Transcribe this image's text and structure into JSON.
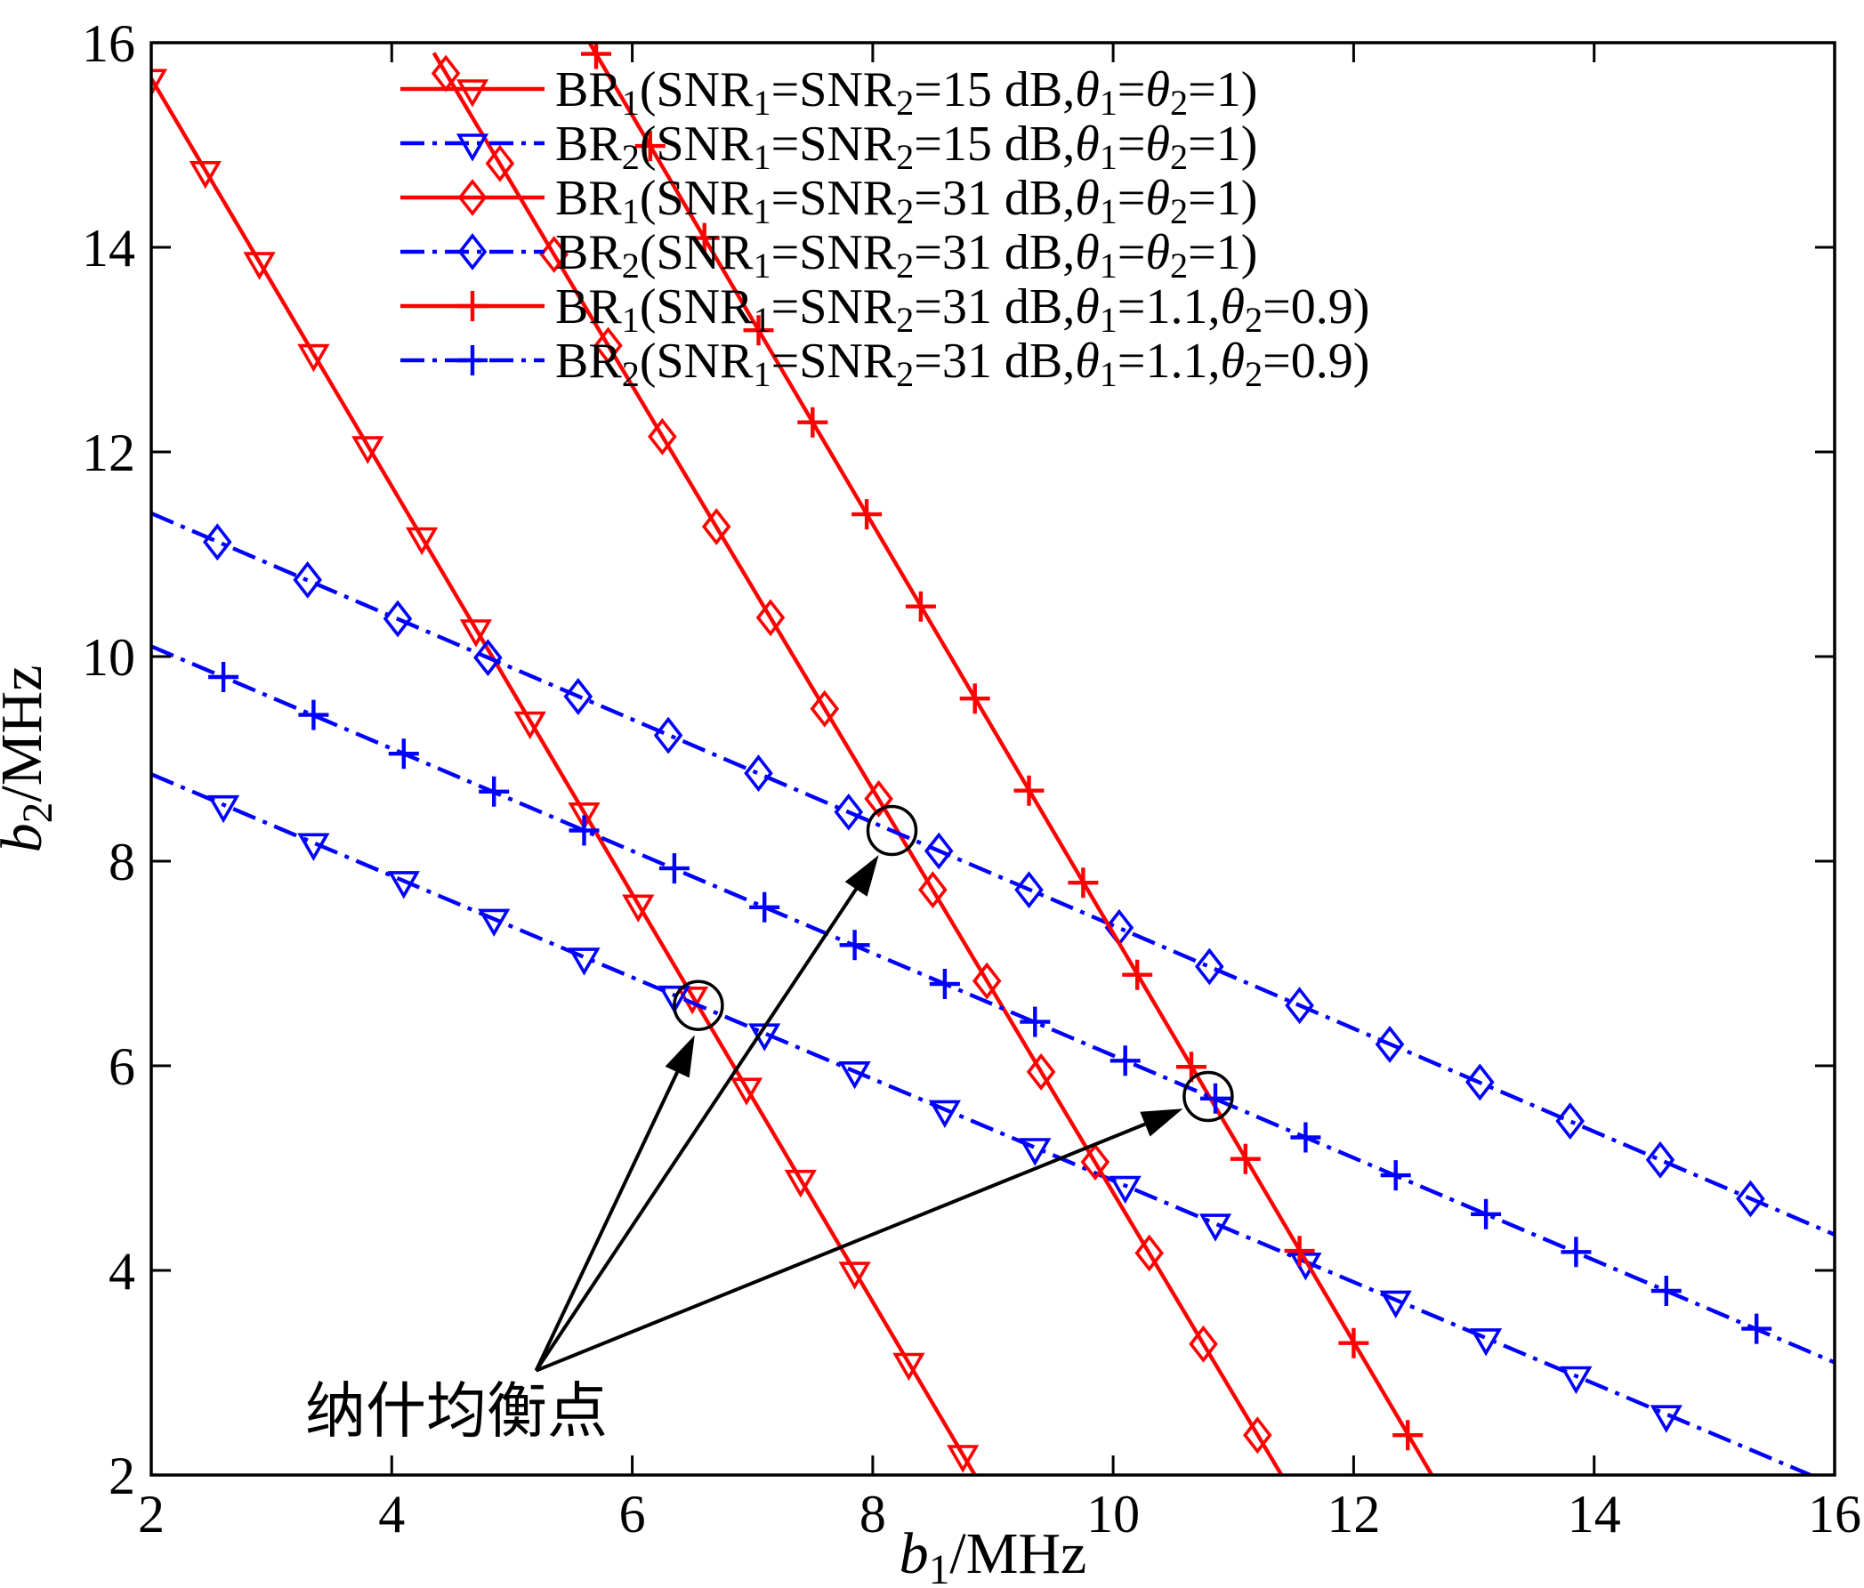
{
  "figure": {
    "background": "#ffffff",
    "annotation_color": "#000000"
  },
  "chart_data": {
    "type": "line",
    "title": "",
    "xlabel": "$b$_1/MHz",
    "ylabel": "$b$_2/MHz",
    "xlim": [
      2,
      16
    ],
    "ylim": [
      2,
      16
    ],
    "xticks": [
      2,
      4,
      6,
      8,
      10,
      12,
      14,
      16
    ],
    "yticks": [
      2,
      4,
      6,
      8,
      10,
      12,
      14,
      16
    ],
    "grid": false,
    "legend_position": "top-inside-no-box",
    "series": [
      {
        "name": "BR_1(SNR_1=SNR_2=15 dB,$θ$_1=$θ$_2=1)",
        "color": "#ff0000",
        "line_style": "solid",
        "marker": "triangle-down",
        "line": [
          [
            2,
            15.65
          ],
          [
            8.85,
            2
          ]
        ],
        "x": [
          2.0,
          2.45,
          2.9,
          3.35,
          3.8,
          4.25,
          4.7,
          5.15,
          5.6,
          6.05,
          6.5,
          6.95,
          7.4,
          7.85,
          8.3,
          8.75
        ],
        "y": [
          15.65,
          14.75,
          13.86,
          12.96,
          12.06,
          11.17,
          10.27,
          9.37,
          8.48,
          7.58,
          6.68,
          5.79,
          4.89,
          3.99,
          3.1,
          2.2
        ]
      },
      {
        "name": "BR_2(SNR_1=SNR_2=15 dB,$θ$_1=$θ$_2=1)",
        "color": "#0000ff",
        "line_style": "dashdot",
        "marker": "triangle-down",
        "line": [
          [
            2,
            8.85
          ],
          [
            16,
            1.9
          ]
        ],
        "x": [
          2.6,
          3.35,
          4.1,
          4.85,
          5.6,
          6.35,
          7.1,
          7.85,
          8.6,
          9.35,
          10.1,
          10.85,
          11.6,
          12.35,
          13.1,
          13.85,
          14.6
        ],
        "y": [
          8.55,
          8.18,
          7.81,
          7.44,
          7.06,
          6.69,
          6.32,
          5.95,
          5.57,
          5.2,
          4.83,
          4.46,
          4.08,
          3.71,
          3.34,
          2.97,
          2.59
        ]
      },
      {
        "name": "BR_1(SNR_1=SNR_2=31 dB,$θ$_1=$θ$_2=1)",
        "color": "#ff0000",
        "line_style": "solid",
        "marker": "diamond",
        "line": [
          [
            4.35,
            15.9
          ],
          [
            11.4,
            2
          ]
        ],
        "x": [
          4.45,
          4.9,
          5.35,
          5.8,
          6.25,
          6.7,
          7.15,
          7.6,
          8.05,
          8.5,
          8.95,
          9.4,
          9.85,
          10.3,
          10.75,
          11.2
        ],
        "y": [
          15.7,
          14.82,
          13.93,
          13.04,
          12.15,
          11.27,
          10.38,
          9.49,
          8.61,
          7.72,
          6.83,
          5.94,
          5.06,
          4.17,
          3.28,
          2.39
        ]
      },
      {
        "name": "BR_2(SNR_1=SNR_2=31 dB,$θ$_1=$θ$_2=1)",
        "color": "#0000ff",
        "line_style": "dashdot",
        "marker": "diamond",
        "line": [
          [
            2,
            11.4
          ],
          [
            16,
            4.35
          ]
        ],
        "x": [
          2.55,
          3.3,
          4.05,
          4.8,
          5.55,
          6.3,
          7.05,
          7.8,
          8.55,
          9.3,
          10.05,
          10.8,
          11.55,
          12.3,
          13.05,
          13.8,
          14.55,
          15.3
        ],
        "y": [
          11.12,
          10.75,
          10.37,
          9.99,
          9.61,
          9.23,
          8.86,
          8.48,
          8.1,
          7.72,
          7.35,
          6.97,
          6.59,
          6.21,
          5.84,
          5.46,
          5.08,
          4.7
        ]
      },
      {
        "name": "BR_1(SNR_1=SNR_2=31 dB,$θ$_1=1.1,$θ$_2=0.9)",
        "color": "#ff0000",
        "line_style": "solid",
        "marker": "plus",
        "line": [
          [
            5.62,
            16.05
          ],
          [
            12.65,
            2
          ]
        ],
        "x": [
          5.7,
          6.15,
          6.6,
          7.05,
          7.5,
          7.95,
          8.4,
          8.85,
          9.3,
          9.75,
          10.2,
          10.65,
          11.1,
          11.55,
          12.0,
          12.45
        ],
        "y": [
          15.89,
          14.99,
          14.09,
          13.19,
          12.29,
          11.39,
          10.49,
          9.59,
          8.69,
          7.79,
          6.89,
          5.99,
          5.09,
          4.19,
          3.29,
          2.39
        ]
      },
      {
        "name": "BR_2(SNR_1=SNR_2=31 dB,$θ$_1=1.1,$θ$_2=0.9)",
        "color": "#0000ff",
        "line_style": "dashdot",
        "marker": "plus",
        "line": [
          [
            2,
            10.1
          ],
          [
            16,
            3.1
          ]
        ],
        "x": [
          2.6,
          3.35,
          4.1,
          4.85,
          5.6,
          6.35,
          7.1,
          7.85,
          8.6,
          9.35,
          10.1,
          10.85,
          11.6,
          12.35,
          13.1,
          13.85,
          14.6,
          15.35
        ],
        "y": [
          9.8,
          9.43,
          9.05,
          8.68,
          8.3,
          7.93,
          7.55,
          7.18,
          6.8,
          6.43,
          6.05,
          5.68,
          5.3,
          4.93,
          4.55,
          4.18,
          3.8,
          3.43
        ]
      }
    ],
    "nash_equilibria": [
      {
        "x": 6.55,
        "y": 6.59
      },
      {
        "x": 8.16,
        "y": 8.3
      },
      {
        "x": 10.79,
        "y": 5.7
      }
    ],
    "annotation": {
      "label": "纳什均衡点",
      "label_x": 3.28,
      "label_y": 2.42,
      "arrow_tail": [
        5.2,
        3.02
      ],
      "arrow_tips": [
        [
          6.52,
          6.3
        ],
        [
          8.05,
          8.06
        ],
        [
          10.58,
          5.58
        ]
      ]
    }
  }
}
